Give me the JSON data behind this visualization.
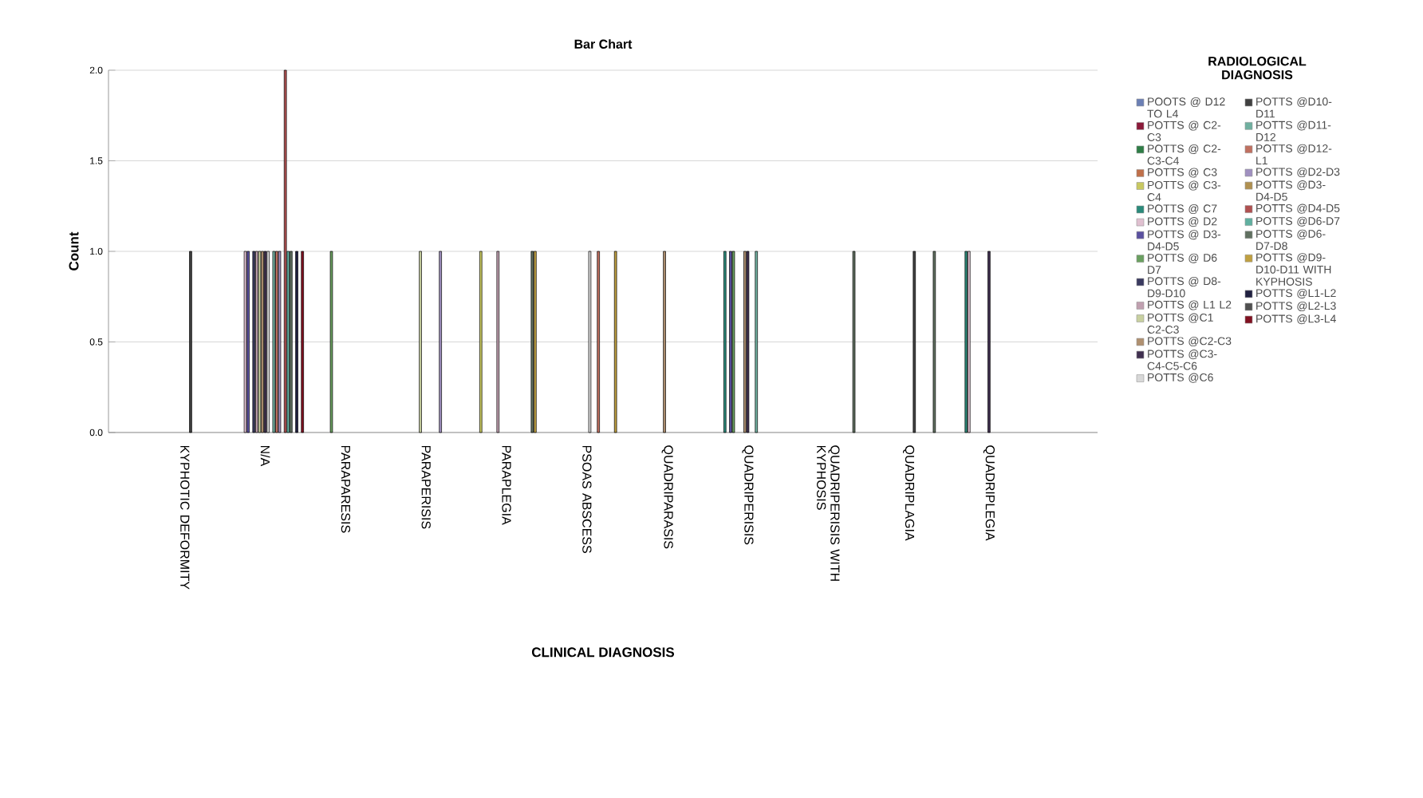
{
  "chart_data": {
    "type": "bar",
    "title": "Bar Chart",
    "xlabel": "CLINICAL DIAGNOSIS",
    "ylabel": "Count",
    "legend_title": "RADIOLOGICAL DIAGNOSIS",
    "categories": [
      "KYPHOTIC DEFORMITY",
      "N/A",
      "PARAPARESIS",
      "PARAPERISIS",
      "PARAPLEGIA",
      "PSOAS ABSCESS",
      "QUADRIPARASIS",
      "QUADRIPERISIS",
      "QUADRIPERISIS WITH KYPHOSIS",
      "QUADRIPLAGIA",
      "QUADRIPLEGIA"
    ],
    "ylim": [
      0,
      2
    ],
    "yticks": [
      {
        "value": 0,
        "label": "0.0"
      },
      {
        "value": 0.5,
        "label": "0.5"
      },
      {
        "value": 1,
        "label": "1.0"
      },
      {
        "value": 1.5,
        "label": "1.5"
      },
      {
        "value": 2,
        "label": "2.0"
      }
    ],
    "grid": "y",
    "legend": "right",
    "series": [
      {
        "name": "POOTS @ D12 TO L4",
        "color": "#6b7fb5",
        "values": [
          null,
          null,
          null,
          null,
          null,
          null,
          null,
          null,
          null,
          null,
          null
        ]
      },
      {
        "name": "POTTS @ C2-C3",
        "color": "#8b1a3a",
        "values": [
          null,
          null,
          null,
          null,
          null,
          null,
          null,
          null,
          null,
          null,
          null
        ]
      },
      {
        "name": "POTTS @ C2-C3-C4",
        "color": "#2e7d46",
        "values": [
          null,
          null,
          null,
          null,
          null,
          null,
          null,
          null,
          null,
          null,
          null
        ]
      },
      {
        "name": "POTTS @ C3",
        "color": "#c0704a",
        "values": [
          null,
          null,
          null,
          null,
          null,
          null,
          null,
          null,
          null,
          null,
          null
        ]
      },
      {
        "name": "POTTS @ C3-C4",
        "color": "#c8c860",
        "values": [
          null,
          null,
          null,
          null,
          1,
          null,
          null,
          null,
          null,
          null,
          null
        ]
      },
      {
        "name": "POTTS @ C7",
        "color": "#2a8a7a",
        "values": [
          null,
          null,
          null,
          null,
          null,
          null,
          null,
          1,
          null,
          null,
          1
        ]
      },
      {
        "name": "POTTS @ D2",
        "color": "#e0c0d0",
        "values": [
          null,
          1,
          null,
          null,
          null,
          null,
          null,
          null,
          null,
          null,
          1
        ]
      },
      {
        "name": "POTTS @ D3-D4-D5",
        "color": "#5a50a0",
        "values": [
          null,
          1,
          null,
          null,
          null,
          null,
          null,
          1,
          null,
          null,
          null
        ]
      },
      {
        "name": "POTTS @ D6 D7",
        "color": "#6aa060",
        "values": [
          null,
          null,
          1,
          null,
          null,
          null,
          null,
          1,
          null,
          null,
          null
        ]
      },
      {
        "name": "POTTS @ D8-D9-D10",
        "color": "#3a3a60",
        "values": [
          null,
          1,
          null,
          null,
          null,
          null,
          null,
          null,
          null,
          null,
          null
        ]
      },
      {
        "name": "POTTS @ L1 L2",
        "color": "#c0a0b0",
        "values": [
          null,
          1,
          null,
          null,
          1,
          null,
          null,
          null,
          null,
          null,
          null
        ]
      },
      {
        "name": "POTTS @C1 C2-C3",
        "color": "#c8d0a0",
        "values": [
          null,
          1,
          null,
          1,
          null,
          null,
          null,
          null,
          null,
          null,
          null
        ]
      },
      {
        "name": "POTTS @C2-C3",
        "color": "#b09070",
        "values": [
          null,
          1,
          null,
          null,
          null,
          null,
          1,
          1,
          null,
          null,
          null
        ]
      },
      {
        "name": "POTTS @C3-C4-C5-C6",
        "color": "#403050",
        "values": [
          null,
          1,
          null,
          null,
          null,
          null,
          null,
          1,
          null,
          null,
          1
        ]
      },
      {
        "name": "POTTS @C6",
        "color": "#d8d8d8",
        "values": [
          null,
          1,
          null,
          null,
          null,
          1,
          null,
          null,
          null,
          null,
          null
        ]
      },
      {
        "name": "POTTS @D10-D11",
        "color": "#404040",
        "values": [
          1,
          null,
          null,
          null,
          null,
          null,
          null,
          null,
          null,
          1,
          null
        ]
      },
      {
        "name": "POTTS @D11-D12",
        "color": "#70b0a0",
        "values": [
          null,
          1,
          null,
          null,
          null,
          null,
          null,
          1,
          null,
          null,
          null
        ]
      },
      {
        "name": "POTTS @D12-L1",
        "color": "#c07060",
        "values": [
          null,
          1,
          null,
          null,
          null,
          1,
          null,
          null,
          null,
          null,
          null
        ]
      },
      {
        "name": "POTTS @D2-D3",
        "color": "#a090c0",
        "values": [
          null,
          1,
          null,
          1,
          null,
          null,
          null,
          null,
          null,
          null,
          null
        ]
      },
      {
        "name": "POTTS @D3-D4-D5",
        "color": "#b09050",
        "values": [
          null,
          null,
          null,
          null,
          null,
          null,
          null,
          null,
          null,
          null,
          null
        ]
      },
      {
        "name": "POTTS @D4-D5",
        "color": "#b05050",
        "values": [
          null,
          2,
          null,
          null,
          null,
          null,
          null,
          null,
          null,
          null,
          null
        ]
      },
      {
        "name": "POTTS @D6-D7",
        "color": "#60b0a0",
        "values": [
          null,
          1,
          null,
          null,
          null,
          null,
          null,
          null,
          null,
          null,
          null
        ]
      },
      {
        "name": "POTTS @D6-D7-D8",
        "color": "#607060",
        "values": [
          null,
          1,
          null,
          null,
          1,
          null,
          null,
          null,
          1,
          1,
          null
        ]
      },
      {
        "name": "POTTS @D9-D10-D11 WITH KYPHOSIS",
        "color": "#c0a040",
        "values": [
          null,
          null,
          null,
          null,
          1,
          1,
          null,
          null,
          null,
          null,
          null
        ]
      },
      {
        "name": "POTTS @L1-L2",
        "color": "#202040",
        "values": [
          null,
          1,
          null,
          null,
          null,
          null,
          null,
          null,
          null,
          null,
          null
        ]
      },
      {
        "name": "POTTS @L2-L3",
        "color": "#505050",
        "values": [
          null,
          null,
          null,
          null,
          null,
          null,
          null,
          null,
          null,
          null,
          null
        ]
      },
      {
        "name": "POTTS @L3-L4",
        "color": "#801020",
        "values": [
          null,
          1,
          null,
          null,
          null,
          null,
          null,
          null,
          null,
          null,
          null
        ]
      }
    ]
  }
}
